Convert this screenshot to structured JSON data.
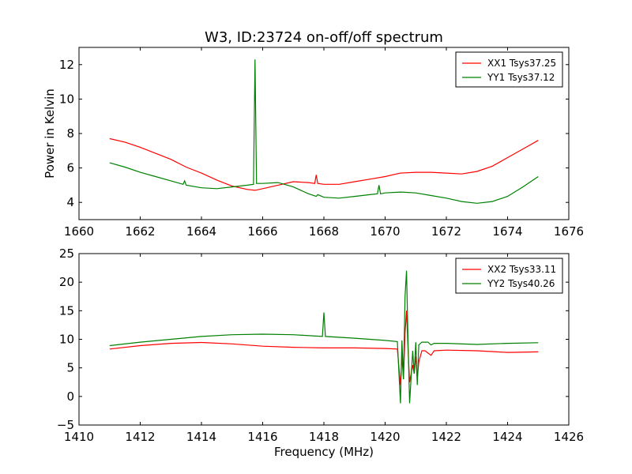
{
  "figure": {
    "title": "W3, ID:23724 on-off/off spectrum",
    "xlabel": "Frequency (MHz)"
  },
  "chart_data": [
    {
      "type": "line",
      "title": "W3, ID:23724 on-off/off spectrum",
      "xlabel": "",
      "ylabel": "Power in Kelvin",
      "xlim": [
        1660,
        1676
      ],
      "ylim": [
        3,
        13
      ],
      "xticks": [
        1660,
        1662,
        1664,
        1666,
        1668,
        1670,
        1672,
        1674,
        1676
      ],
      "yticks": [
        4,
        6,
        8,
        10,
        12
      ],
      "grid": false,
      "legend_position": "top-right",
      "series": [
        {
          "name": "XX1 Tsys37.25",
          "color": "#ff0000",
          "points": [
            [
              1661.0,
              7.7
            ],
            [
              1661.5,
              7.5
            ],
            [
              1662.0,
              7.2
            ],
            [
              1662.5,
              6.85
            ],
            [
              1663.0,
              6.5
            ],
            [
              1663.5,
              6.05
            ],
            [
              1664.0,
              5.7
            ],
            [
              1664.5,
              5.3
            ],
            [
              1665.0,
              4.95
            ],
            [
              1665.5,
              4.75
            ],
            [
              1665.75,
              4.7
            ],
            [
              1666.0,
              4.8
            ],
            [
              1666.5,
              5.0
            ],
            [
              1667.0,
              5.2
            ],
            [
              1667.5,
              5.15
            ],
            [
              1667.7,
              5.1
            ],
            [
              1667.75,
              5.6
            ],
            [
              1667.8,
              5.1
            ],
            [
              1668.0,
              5.05
            ],
            [
              1668.5,
              5.05
            ],
            [
              1669.0,
              5.2
            ],
            [
              1669.5,
              5.35
            ],
            [
              1670.0,
              5.5
            ],
            [
              1670.5,
              5.7
            ],
            [
              1671.0,
              5.75
            ],
            [
              1671.5,
              5.75
            ],
            [
              1672.0,
              5.7
            ],
            [
              1672.5,
              5.65
            ],
            [
              1673.0,
              5.8
            ],
            [
              1673.5,
              6.1
            ],
            [
              1674.0,
              6.6
            ],
            [
              1674.5,
              7.1
            ],
            [
              1675.0,
              7.6
            ]
          ]
        },
        {
          "name": "YY1 Tsys37.12",
          "color": "#008000",
          "points": [
            [
              1661.0,
              6.3
            ],
            [
              1661.5,
              6.05
            ],
            [
              1662.0,
              5.75
            ],
            [
              1662.5,
              5.5
            ],
            [
              1663.0,
              5.25
            ],
            [
              1663.4,
              5.05
            ],
            [
              1663.45,
              5.25
            ],
            [
              1663.5,
              5.0
            ],
            [
              1664.0,
              4.85
            ],
            [
              1664.5,
              4.8
            ],
            [
              1665.0,
              4.9
            ],
            [
              1665.5,
              5.0
            ],
            [
              1665.7,
              5.05
            ],
            [
              1665.75,
              12.3
            ],
            [
              1665.8,
              5.1
            ],
            [
              1666.0,
              5.1
            ],
            [
              1666.5,
              5.15
            ],
            [
              1667.0,
              4.9
            ],
            [
              1667.5,
              4.5
            ],
            [
              1667.75,
              4.35
            ],
            [
              1667.8,
              4.45
            ],
            [
              1668.0,
              4.3
            ],
            [
              1668.5,
              4.25
            ],
            [
              1669.0,
              4.35
            ],
            [
              1669.5,
              4.45
            ],
            [
              1669.75,
              4.5
            ],
            [
              1669.8,
              5.0
            ],
            [
              1669.85,
              4.5
            ],
            [
              1670.0,
              4.55
            ],
            [
              1670.5,
              4.6
            ],
            [
              1671.0,
              4.55
            ],
            [
              1671.5,
              4.4
            ],
            [
              1672.0,
              4.25
            ],
            [
              1672.5,
              4.05
            ],
            [
              1673.0,
              3.95
            ],
            [
              1673.5,
              4.05
            ],
            [
              1674.0,
              4.35
            ],
            [
              1674.5,
              4.9
            ],
            [
              1675.0,
              5.5
            ]
          ]
        }
      ]
    },
    {
      "type": "line",
      "title": "",
      "xlabel": "Frequency (MHz)",
      "ylabel": "",
      "xlim": [
        1410,
        1426
      ],
      "ylim": [
        -5,
        25
      ],
      "xticks": [
        1410,
        1412,
        1414,
        1416,
        1418,
        1420,
        1422,
        1424,
        1426
      ],
      "yticks": [
        -5,
        0,
        5,
        10,
        15,
        20,
        25
      ],
      "grid": false,
      "legend_position": "top-right",
      "series": [
        {
          "name": "XX2 Tsys33.11",
          "color": "#ff0000",
          "points": [
            [
              1411.0,
              8.3
            ],
            [
              1412.0,
              8.9
            ],
            [
              1413.0,
              9.3
            ],
            [
              1414.0,
              9.45
            ],
            [
              1415.0,
              9.2
            ],
            [
              1416.0,
              8.8
            ],
            [
              1417.0,
              8.6
            ],
            [
              1418.0,
              8.5
            ],
            [
              1419.0,
              8.5
            ],
            [
              1420.0,
              8.4
            ],
            [
              1420.4,
              8.3
            ],
            [
              1420.5,
              2.0
            ],
            [
              1420.55,
              7.0
            ],
            [
              1420.6,
              3.0
            ],
            [
              1420.65,
              11.0
            ],
            [
              1420.7,
              15.0
            ],
            [
              1420.75,
              8.0
            ],
            [
              1420.8,
              2.5
            ],
            [
              1420.9,
              5.5
            ],
            [
              1420.95,
              4.0
            ],
            [
              1421.0,
              7.0
            ],
            [
              1421.05,
              3.0
            ],
            [
              1421.1,
              6.0
            ],
            [
              1421.2,
              8.0
            ],
            [
              1421.3,
              8.0
            ],
            [
              1421.4,
              7.6
            ],
            [
              1421.5,
              7.2
            ],
            [
              1421.6,
              8.0
            ],
            [
              1422.0,
              8.1
            ],
            [
              1423.0,
              8.0
            ],
            [
              1424.0,
              7.7
            ],
            [
              1425.0,
              7.8
            ]
          ]
        },
        {
          "name": "YY2 Tsys40.26",
          "color": "#008000",
          "points": [
            [
              1411.0,
              8.9
            ],
            [
              1412.0,
              9.5
            ],
            [
              1413.0,
              10.0
            ],
            [
              1414.0,
              10.5
            ],
            [
              1415.0,
              10.8
            ],
            [
              1416.0,
              10.9
            ],
            [
              1417.0,
              10.8
            ],
            [
              1417.95,
              10.5
            ],
            [
              1418.0,
              14.7
            ],
            [
              1418.05,
              10.5
            ],
            [
              1419.0,
              10.2
            ],
            [
              1420.0,
              9.8
            ],
            [
              1420.4,
              9.6
            ],
            [
              1420.5,
              -1.2
            ],
            [
              1420.55,
              9.8
            ],
            [
              1420.6,
              3.0
            ],
            [
              1420.65,
              17.5
            ],
            [
              1420.7,
              22.0
            ],
            [
              1420.75,
              9.0
            ],
            [
              1420.8,
              -1.2
            ],
            [
              1420.9,
              8.0
            ],
            [
              1420.95,
              4.0
            ],
            [
              1421.0,
              9.5
            ],
            [
              1421.05,
              2.0
            ],
            [
              1421.1,
              9.0
            ],
            [
              1421.2,
              9.5
            ],
            [
              1421.4,
              9.5
            ],
            [
              1421.5,
              9.0
            ],
            [
              1421.6,
              9.3
            ],
            [
              1422.0,
              9.3
            ],
            [
              1423.0,
              9.1
            ],
            [
              1424.0,
              9.3
            ],
            [
              1425.0,
              9.4
            ]
          ]
        }
      ]
    }
  ]
}
